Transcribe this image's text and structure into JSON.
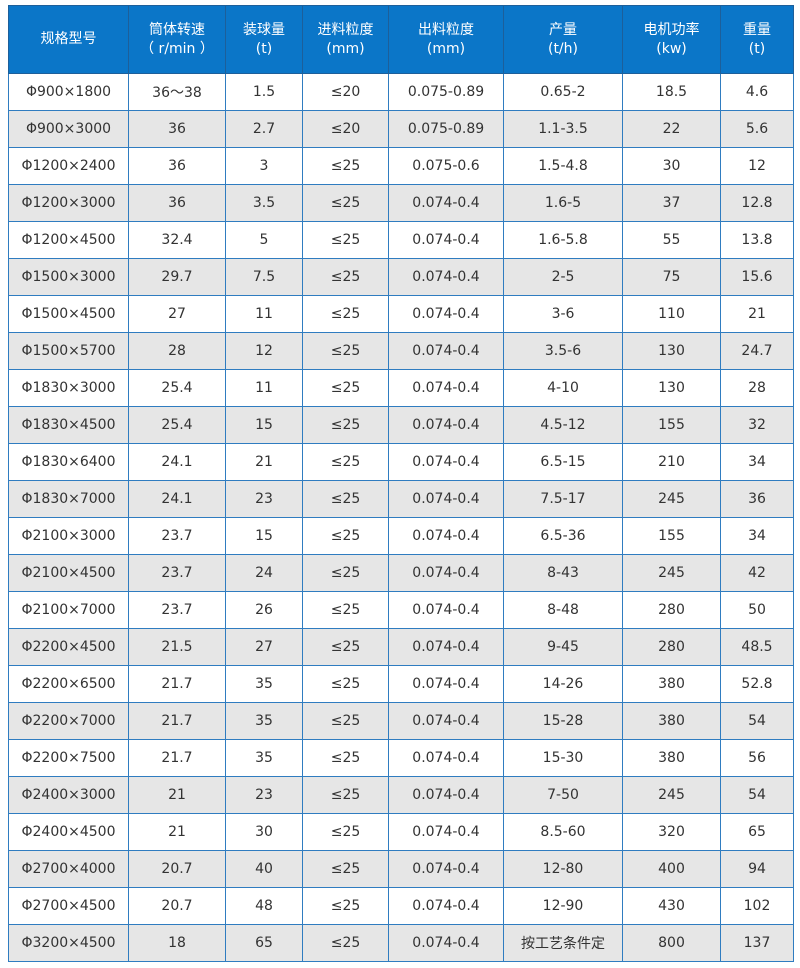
{
  "headers": [
    [
      "规格型号",
      ""
    ],
    [
      "筒体转速",
      "（ r/min ）"
    ],
    [
      "装球量",
      "(t)"
    ],
    [
      "进料粒度",
      "(mm)"
    ],
    [
      "出料粒度",
      "(mm)"
    ],
    [
      "产量",
      "(t/h)"
    ],
    [
      "电机功率",
      "(kw)"
    ],
    [
      "重量",
      "(t)"
    ]
  ],
  "rows": [
    [
      "Φ900×1800",
      "36～38",
      "1.5",
      "≤20",
      "0.075-0.89",
      "0.65-2",
      "18.5",
      "4.6"
    ],
    [
      "Φ900×3000",
      "36",
      "2.7",
      "≤20",
      "0.075-0.89",
      "1.1-3.5",
      "22",
      "5.6"
    ],
    [
      "Φ1200×2400",
      "36",
      "3",
      "≤25",
      "0.075-0.6",
      "1.5-4.8",
      "30",
      "12"
    ],
    [
      "Φ1200×3000",
      "36",
      "3.5",
      "≤25",
      "0.074-0.4",
      "1.6-5",
      "37",
      "12.8"
    ],
    [
      "Φ1200×4500",
      "32.4",
      "5",
      "≤25",
      "0.074-0.4",
      "1.6-5.8",
      "55",
      "13.8"
    ],
    [
      "Φ1500×3000",
      "29.7",
      "7.5",
      "≤25",
      "0.074-0.4",
      "2-5",
      "75",
      "15.6"
    ],
    [
      "Φ1500×4500",
      "27",
      "11",
      "≤25",
      "0.074-0.4",
      "3-6",
      "110",
      "21"
    ],
    [
      "Φ1500×5700",
      "28",
      "12",
      "≤25",
      "0.074-0.4",
      "3.5-6",
      "130",
      "24.7"
    ],
    [
      "Φ1830×3000",
      "25.4",
      "11",
      "≤25",
      "0.074-0.4",
      "4-10",
      "130",
      "28"
    ],
    [
      "Φ1830×4500",
      "25.4",
      "15",
      "≤25",
      "0.074-0.4",
      "4.5-12",
      "155",
      "32"
    ],
    [
      "Φ1830×6400",
      "24.1",
      "21",
      "≤25",
      "0.074-0.4",
      "6.5-15",
      "210",
      "34"
    ],
    [
      "Φ1830×7000",
      "24.1",
      "23",
      "≤25",
      "0.074-0.4",
      "7.5-17",
      "245",
      "36"
    ],
    [
      "Φ2100×3000",
      "23.7",
      "15",
      "≤25",
      "0.074-0.4",
      "6.5-36",
      "155",
      "34"
    ],
    [
      "Φ2100×4500",
      "23.7",
      "24",
      "≤25",
      "0.074-0.4",
      "8-43",
      "245",
      "42"
    ],
    [
      "Φ2100×7000",
      "23.7",
      "26",
      "≤25",
      "0.074-0.4",
      "8-48",
      "280",
      "50"
    ],
    [
      "Φ2200×4500",
      "21.5",
      "27",
      "≤25",
      "0.074-0.4",
      "9-45",
      "280",
      "48.5"
    ],
    [
      "Φ2200×6500",
      "21.7",
      "35",
      "≤25",
      "0.074-0.4",
      "14-26",
      "380",
      "52.8"
    ],
    [
      "Φ2200×7000",
      "21.7",
      "35",
      "≤25",
      "0.074-0.4",
      "15-28",
      "380",
      "54"
    ],
    [
      "Φ2200×7500",
      "21.7",
      "35",
      "≤25",
      "0.074-0.4",
      "15-30",
      "380",
      "56"
    ],
    [
      "Φ2400×3000",
      "21",
      "23",
      "≤25",
      "0.074-0.4",
      "7-50",
      "245",
      "54"
    ],
    [
      "Φ2400×4500",
      "21",
      "30",
      "≤25",
      "0.074-0.4",
      "8.5-60",
      "320",
      "65"
    ],
    [
      "Φ2700×4000",
      "20.7",
      "40",
      "≤25",
      "0.074-0.4",
      "12-80",
      "400",
      "94"
    ],
    [
      "Φ2700×4500",
      "20.7",
      "48",
      "≤25",
      "0.074-0.4",
      "12-90",
      "430",
      "102"
    ],
    [
      "Φ3200×4500",
      "18",
      "65",
      "≤25",
      "0.074-0.4",
      "按工艺条件定",
      "800",
      "137"
    ]
  ]
}
